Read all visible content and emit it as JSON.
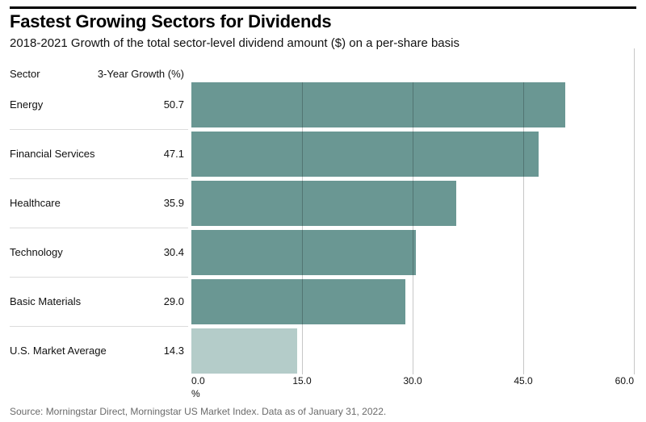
{
  "header": {
    "title": "Fastest Growing Sectors for Dividends",
    "subtitle": "2018-2021 Growth of the total sector-level dividend amount ($) on a per-share basis"
  },
  "table": {
    "col_sector": "Sector",
    "col_growth": "3-Year Growth (%)"
  },
  "chart_data": {
    "type": "bar",
    "orientation": "horizontal",
    "title": "Fastest Growing Sectors for Dividends",
    "subtitle": "2018-2021 Growth of the total sector-level dividend amount ($) on a per-share basis",
    "categories": [
      "Energy",
      "Financial Services",
      "Healthcare",
      "Technology",
      "Basic Materials",
      "U.S. Market Average"
    ],
    "values": [
      50.7,
      47.1,
      35.9,
      30.4,
      29.0,
      14.3
    ],
    "value_labels": [
      "50.7",
      "47.1",
      "35.9",
      "30.4",
      "29.0",
      "14.3"
    ],
    "highlight_index": 5,
    "xlim": [
      0,
      60
    ],
    "x_tick_values": [
      0,
      15,
      30,
      45,
      60
    ],
    "x_tick_labels": [
      "0.0",
      "15.0",
      "30.0",
      "45.0",
      "60.0"
    ],
    "xlabel": "%",
    "grid": true,
    "legend": "none",
    "bar_color": "#6a9793",
    "highlight_color": "#b4ccc9"
  },
  "footer": {
    "source": "Source: Morningstar Direct, Morningstar US Market Index. Data as of January 31, 2022."
  }
}
